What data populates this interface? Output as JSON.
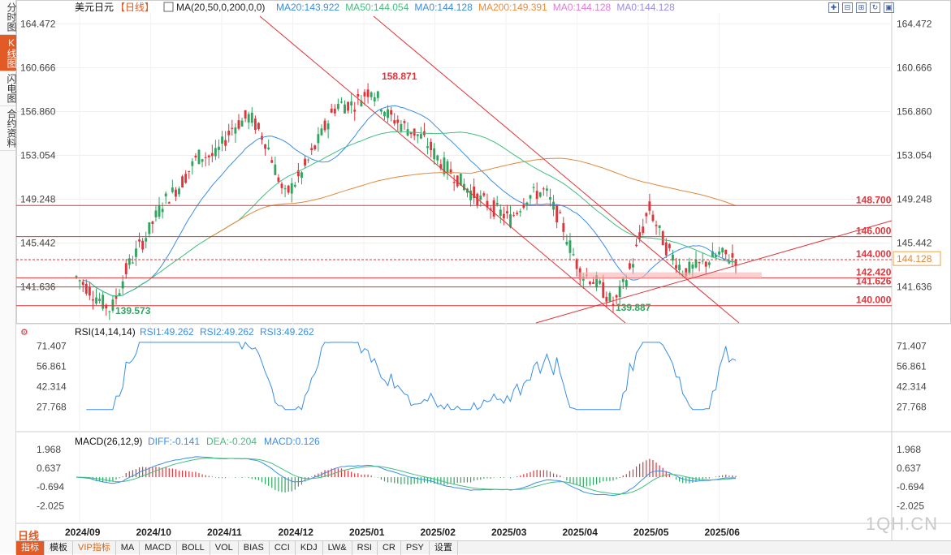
{
  "sidebar": {
    "tabs": [
      {
        "label": "分时图",
        "active": false
      },
      {
        "label": "K线图",
        "active": true
      },
      {
        "label": "闪电图",
        "active": false
      },
      {
        "label": "合约资料",
        "active": false
      }
    ]
  },
  "header": {
    "symbol": "美元日元",
    "period_tag": "【日线】",
    "ma_params": "MA(20,50,0,200,0,0)",
    "ma_values": [
      {
        "text": "MA20:143.922",
        "color": "#3a8ee6"
      },
      {
        "text": "MA50:144.054",
        "color": "#3fbf7f"
      },
      {
        "text": "MA0:144.128",
        "color": "#3a8ee6"
      },
      {
        "text": "MA200:149.391",
        "color": "#f08a3a"
      },
      {
        "text": "MA0:144.128",
        "color": "#e27ad9"
      },
      {
        "text": "MA0:144.128",
        "color": "#9a8ee6"
      }
    ]
  },
  "colors": {
    "up": "#e0343a",
    "down": "#2fa55f",
    "ma20": "#3a8ee6",
    "ma50": "#3fbf7f",
    "ma200": "#e0883a",
    "level": "#e0343a",
    "rsi": "#3a8ee6",
    "diff": "#3a8ee6",
    "dea": "#3fbf7f"
  },
  "price_axis": {
    "ticks": [
      "164.472",
      "160.666",
      "156.860",
      "153.054",
      "149.248",
      "145.442",
      "141.636"
    ],
    "current": "144.128"
  },
  "levels": [
    {
      "value": 148.7,
      "label": "148.700"
    },
    {
      "value": 146.0,
      "label": "146.000"
    },
    {
      "value": 144.0,
      "label": "144.000"
    },
    {
      "value": 142.42,
      "label": "142.420"
    },
    {
      "value": 141.626,
      "label": "141.626"
    },
    {
      "value": 140.0,
      "label": "140.000"
    }
  ],
  "annotations": {
    "high": "158.871",
    "low1": "139.573",
    "low2": "139.887"
  },
  "rsi": {
    "title": "RSI(14,14,14)",
    "rsi1": "RSI1:49.262",
    "rsi2": "RSI2:49.262",
    "rsi3": "RSI3:49.262",
    "ticks": [
      "71.407",
      "56.861",
      "42.314",
      "27.768"
    ]
  },
  "macd": {
    "title": "MACD(26,12,9)",
    "diff": "DIFF:-0.141",
    "dea": "DEA:-0.204",
    "macd": "MACD:0.126",
    "ticks": [
      "1.968",
      "0.637",
      "-0.694",
      "-2.025"
    ]
  },
  "date_labels": [
    "2024/09",
    "2024/10",
    "2024/11",
    "2024/12",
    "2025/01",
    "2025/02",
    "2025/03",
    "2025/04",
    "2025/05",
    "2025/06"
  ],
  "period_label": "日线",
  "bottom_tabs": [
    {
      "label": "指标",
      "active": true,
      "vip": false
    },
    {
      "label": "模板",
      "active": false,
      "vip": false
    },
    {
      "label": "VIP指标",
      "active": false,
      "vip": true
    },
    {
      "label": "MA",
      "active": false,
      "vip": false
    },
    {
      "label": "MACD",
      "active": false,
      "vip": false
    },
    {
      "label": "BOLL",
      "active": false,
      "vip": false
    },
    {
      "label": "VOL",
      "active": false,
      "vip": false
    },
    {
      "label": "BIAS",
      "active": false,
      "vip": false
    },
    {
      "label": "CCI",
      "active": false,
      "vip": false
    },
    {
      "label": "KDJ",
      "active": false,
      "vip": false
    },
    {
      "label": "LW&",
      "active": false,
      "vip": false
    },
    {
      "label": "RSI",
      "active": false,
      "vip": false
    },
    {
      "label": "CR",
      "active": false,
      "vip": false
    },
    {
      "label": "PSY",
      "active": false,
      "vip": false
    },
    {
      "label": "设置",
      "active": false,
      "vip": false
    }
  ],
  "watermark": "1QH.CN",
  "chart_data": {
    "type": "candlestick",
    "title": "美元日元 日线",
    "ylim": [
      138.5,
      165.5
    ],
    "price_path": [
      [
        "2024/09",
        142.5
      ],
      [
        "2024/09",
        141.0
      ],
      [
        "2024/09",
        139.6
      ],
      [
        "2024/09",
        143.5
      ],
      [
        "2024/10",
        146.0
      ],
      [
        "2024/10",
        149.0
      ],
      [
        "2024/10",
        150.5
      ],
      [
        "2024/10",
        153.0
      ],
      [
        "2024/11",
        153.0
      ],
      [
        "2024/11",
        155.5
      ],
      [
        "2024/11",
        156.5
      ],
      [
        "2024/11",
        154.0
      ],
      [
        "2024/12",
        149.5
      ],
      [
        "2024/12",
        151.5
      ],
      [
        "2024/12",
        154.5
      ],
      [
        "2024/12",
        157.5
      ],
      [
        "2025/01",
        157.5
      ],
      [
        "2025/01",
        158.9
      ],
      [
        "2025/01",
        156.5
      ],
      [
        "2025/01",
        155.5
      ],
      [
        "2025/02",
        154.5
      ],
      [
        "2025/02",
        152.5
      ],
      [
        "2025/02",
        151.0
      ],
      [
        "2025/02",
        149.5
      ],
      [
        "2025/03",
        148.5
      ],
      [
        "2025/03",
        147.5
      ],
      [
        "2025/03",
        149.5
      ],
      [
        "2025/03",
        150.0
      ],
      [
        "2025/04",
        147.0
      ],
      [
        "2025/04",
        143.0
      ],
      [
        "2025/04",
        142.0
      ],
      [
        "2025/04",
        140.0
      ],
      [
        "2025/05",
        143.5
      ],
      [
        "2025/05",
        148.5
      ],
      [
        "2025/05",
        145.0
      ],
      [
        "2025/05",
        143.0
      ],
      [
        "2025/06",
        143.5
      ],
      [
        "2025/06",
        144.5
      ],
      [
        "2025/06",
        144.1
      ]
    ]
  }
}
